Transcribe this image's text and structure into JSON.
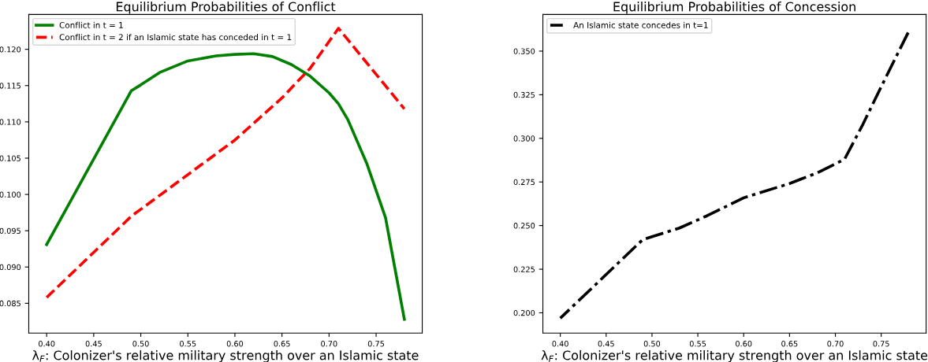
{
  "chart_data": [
    {
      "type": "line",
      "title": "Equilibrium Probabilities of Conflict",
      "xlabel": "λ$_{F}$: Colonizer's relative military strength over an Islamic state",
      "xlim": [
        0.381,
        0.799
      ],
      "xticks": [
        {
          "value": 0.4,
          "label": "0.40"
        },
        {
          "value": 0.45,
          "label": "0.45"
        },
        {
          "value": 0.5,
          "label": "0.50"
        },
        {
          "value": 0.55,
          "label": "0.55"
        },
        {
          "value": 0.6,
          "label": "0.60"
        },
        {
          "value": 0.65,
          "label": "0.65"
        },
        {
          "value": 0.7,
          "label": "0.70"
        },
        {
          "value": 0.75,
          "label": "0.75"
        }
      ],
      "ylim": [
        0.0809,
        0.1248
      ],
      "yticks": [
        {
          "value": 0.085,
          "label": "0.085"
        },
        {
          "value": 0.09,
          "label": "0.090"
        },
        {
          "value": 0.095,
          "label": "0.095"
        },
        {
          "value": 0.1,
          "label": "0.100"
        },
        {
          "value": 0.105,
          "label": "0.105"
        },
        {
          "value": 0.11,
          "label": "0.110"
        },
        {
          "value": 0.115,
          "label": "0.115"
        },
        {
          "value": 0.12,
          "label": "0.120"
        }
      ],
      "grid": false,
      "legend": "top left",
      "marker": "none",
      "series": [
        {
          "name": "Conflict in t = 1",
          "color": "#008000",
          "line_style": "solid",
          "x": [
            0.4,
            0.49,
            0.5,
            0.52,
            0.55,
            0.58,
            0.6,
            0.62,
            0.64,
            0.66,
            0.68,
            0.7,
            0.71,
            0.72,
            0.74,
            0.76,
            0.78
          ],
          "values": [
            0.0931,
            0.1143,
            0.1151,
            0.1168,
            0.1184,
            0.1191,
            0.1193,
            0.1194,
            0.119,
            0.1179,
            0.1163,
            0.114,
            0.1125,
            0.1103,
            0.1043,
            0.0968,
            0.0828
          ]
        },
        {
          "name": "Conflict in t = 2 if an Islamic state has conceded in t = 1",
          "color": "#ff0000",
          "line_style": "dashed",
          "x": [
            0.4,
            0.49,
            0.6,
            0.65,
            0.68,
            0.71,
            0.78
          ],
          "values": [
            0.0858,
            0.097,
            0.1075,
            0.1133,
            0.1174,
            0.1229,
            0.1118
          ]
        }
      ]
    },
    {
      "type": "line",
      "title": "Equilibrium Probabilities of Concession",
      "xlabel": "λ$_{F}$: Colonizer's relative military strength over an Islamic state",
      "xlim": [
        0.381,
        0.799
      ],
      "xticks": [
        {
          "value": 0.4,
          "label": "0.40"
        },
        {
          "value": 0.45,
          "label": "0.45"
        },
        {
          "value": 0.5,
          "label": "0.50"
        },
        {
          "value": 0.55,
          "label": "0.55"
        },
        {
          "value": 0.6,
          "label": "0.60"
        },
        {
          "value": 0.65,
          "label": "0.65"
        },
        {
          "value": 0.7,
          "label": "0.70"
        },
        {
          "value": 0.75,
          "label": "0.75"
        }
      ],
      "ylim": [
        0.1884,
        0.371
      ],
      "yticks": [
        {
          "value": 0.2,
          "label": "0.200"
        },
        {
          "value": 0.225,
          "label": "0.225"
        },
        {
          "value": 0.25,
          "label": "0.250"
        },
        {
          "value": 0.275,
          "label": "0.275"
        },
        {
          "value": 0.3,
          "label": "0.300"
        },
        {
          "value": 0.325,
          "label": "0.325"
        },
        {
          "value": 0.35,
          "label": "0.350"
        }
      ],
      "grid": false,
      "legend": "top left",
      "marker": "none",
      "series": [
        {
          "name": "An Islamic state concedes in t=1",
          "color": "#000000",
          "line_style": "dashdot",
          "x": [
            0.4,
            0.49,
            0.53,
            0.56,
            0.6,
            0.65,
            0.68,
            0.71,
            0.73,
            0.75,
            0.78
          ],
          "values": [
            0.1969,
            0.242,
            0.2486,
            0.2556,
            0.2659,
            0.2741,
            0.2802,
            0.288,
            0.308,
            0.3296,
            0.3613
          ]
        }
      ]
    }
  ]
}
